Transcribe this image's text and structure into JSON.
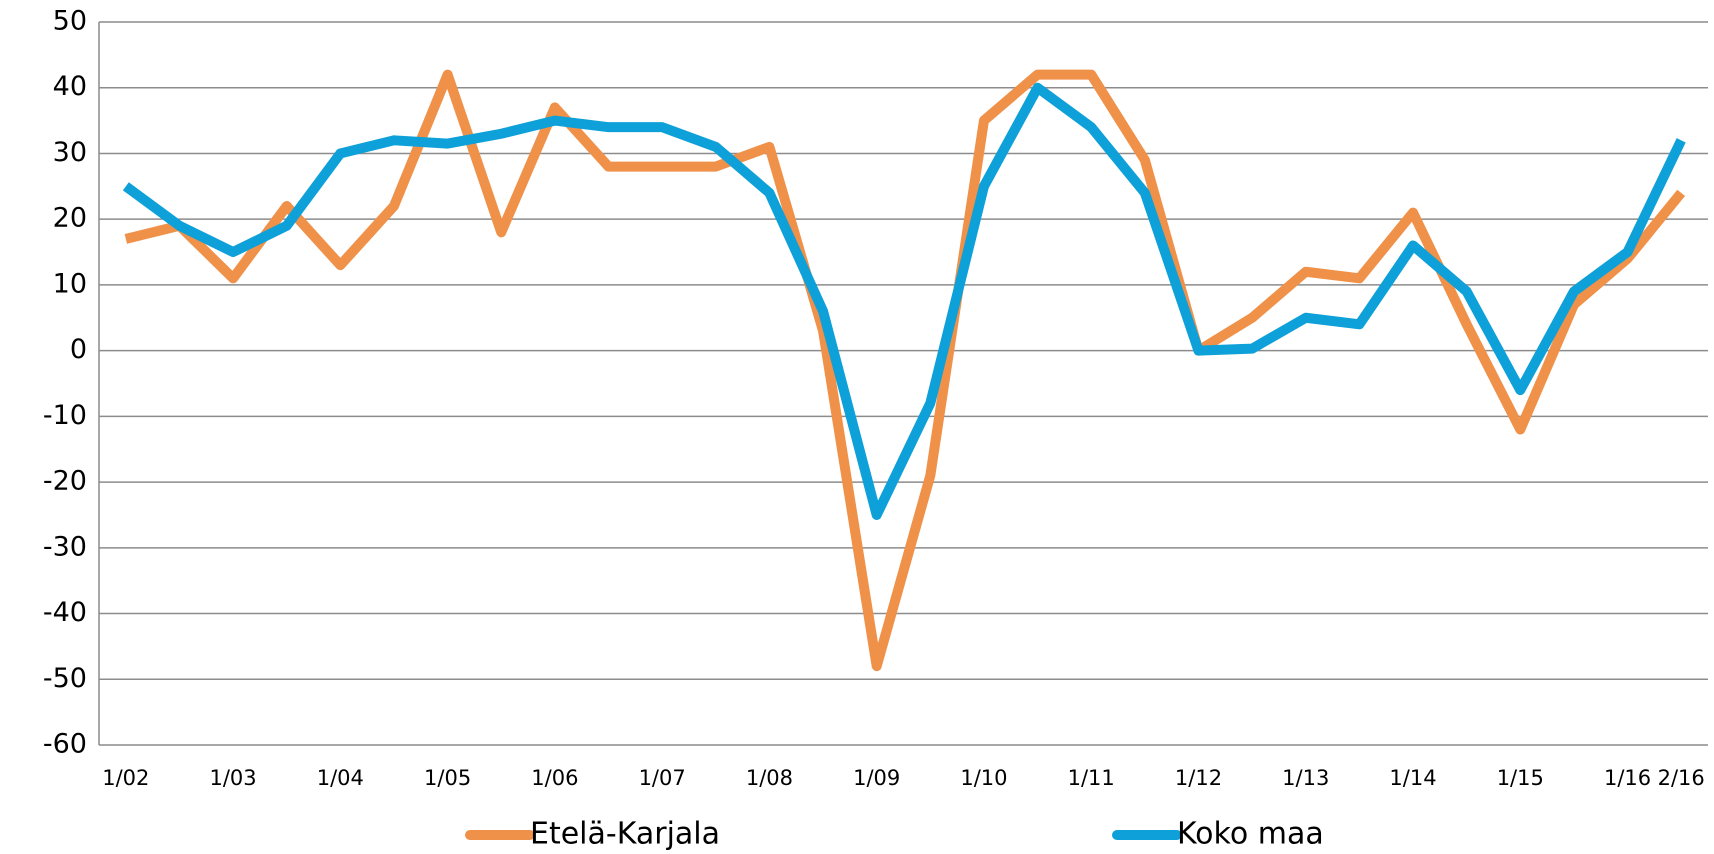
{
  "chart_data": {
    "type": "line",
    "categories": [
      "1/02",
      null,
      "1/03",
      null,
      "1/04",
      null,
      "1/05",
      null,
      "1/06",
      null,
      "1/07",
      null,
      "1/08",
      null,
      "1/09",
      null,
      "1/10",
      null,
      "1/11",
      null,
      "1/12",
      null,
      "1/13",
      null,
      "1/14",
      null,
      "1/15",
      null,
      "1/16",
      "2/16"
    ],
    "series": [
      {
        "name": "Etelä-Karjala",
        "color": "#f0914a",
        "values": [
          17,
          19,
          11,
          22,
          13,
          22,
          42,
          18,
          37,
          28,
          28,
          28,
          31,
          3,
          -48,
          -19,
          35,
          42,
          42,
          29,
          0,
          5,
          12,
          11,
          21,
          4,
          -12,
          7,
          14,
          24
        ]
      },
      {
        "name": "Koko maa",
        "color": "#0ea0d8",
        "values": [
          25,
          19,
          15,
          19,
          30,
          32,
          31.5,
          33,
          35,
          34,
          34,
          31,
          24,
          6,
          -25,
          -8,
          25,
          40,
          34,
          24,
          0,
          0.3,
          5,
          4,
          16,
          9,
          -6,
          9,
          15,
          32
        ]
      }
    ],
    "ylim": [
      -60,
      50
    ],
    "yticks": [
      -60,
      -50,
      -40,
      -30,
      -20,
      -10,
      0,
      10,
      20,
      30,
      40,
      50
    ],
    "grid": true,
    "legend": "bottom"
  }
}
